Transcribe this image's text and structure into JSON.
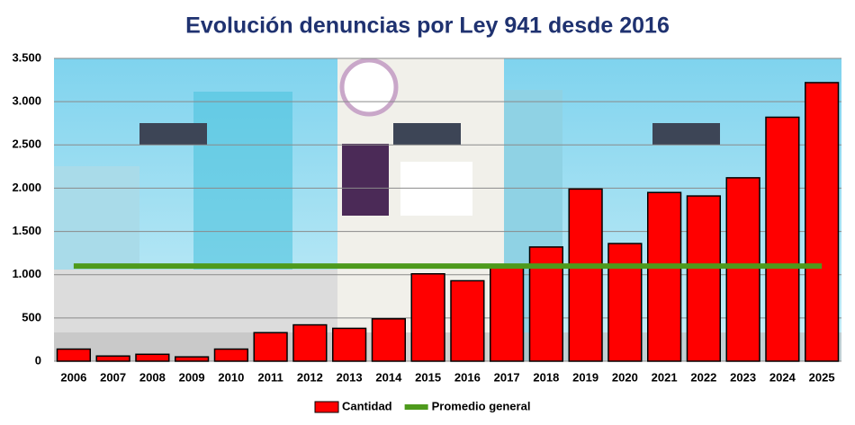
{
  "chart_data": {
    "type": "bar",
    "title": "Evolución denuncias por Ley 941 desde 2016",
    "categories": [
      "2006",
      "2007",
      "2008",
      "2009",
      "2010",
      "2011",
      "2012",
      "2013",
      "2014",
      "2015",
      "2016",
      "2017",
      "2018",
      "2019",
      "2020",
      "2021",
      "2022",
      "2023",
      "2024",
      "2025"
    ],
    "series": [
      {
        "name": "Cantidad",
        "type": "bar",
        "color": "#ff0000",
        "values": [
          140,
          60,
          80,
          50,
          140,
          330,
          420,
          380,
          490,
          1010,
          930,
          1090,
          1320,
          1990,
          1360,
          1950,
          1910,
          2120,
          2820,
          3220
        ]
      },
      {
        "name": "Promedio general",
        "type": "line",
        "color": "#4e9a1c",
        "values": [
          1100,
          1100,
          1100,
          1100,
          1100,
          1100,
          1100,
          1100,
          1100,
          1100,
          1100,
          1100,
          1100,
          1100,
          1100,
          1100,
          1100,
          1100,
          1100,
          1100
        ]
      }
    ],
    "ylim": [
      0,
      3500
    ],
    "yticks": [
      0,
      500,
      {
        "value": 1000,
        "label": "1.000"
      },
      {
        "value": 1500,
        "label": "1.500"
      },
      {
        "value": 2000,
        "label": "2.000"
      },
      {
        "value": 2500,
        "label": "2.500"
      },
      {
        "value": 3000,
        "label": "3.000"
      },
      {
        "value": 3500,
        "label": "3.500"
      }
    ],
    "grid": true,
    "legend": "bottom"
  }
}
